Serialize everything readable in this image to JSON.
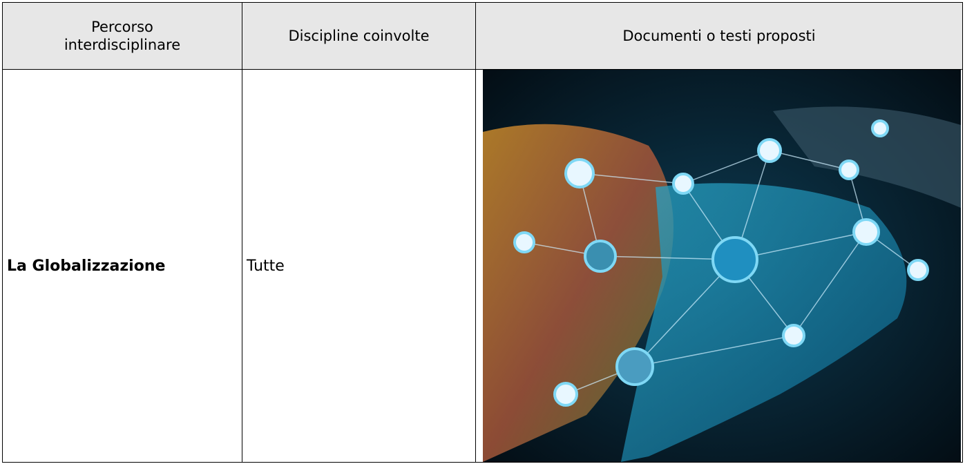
{
  "table": {
    "header": [
      "Percorso interdisciplinare",
      "Discipline coinvolte",
      "Documenti o testi proposti"
    ],
    "rows": [
      [
        "La Globalizzazione",
        "Tutte"
      ]
    ]
  }
}
